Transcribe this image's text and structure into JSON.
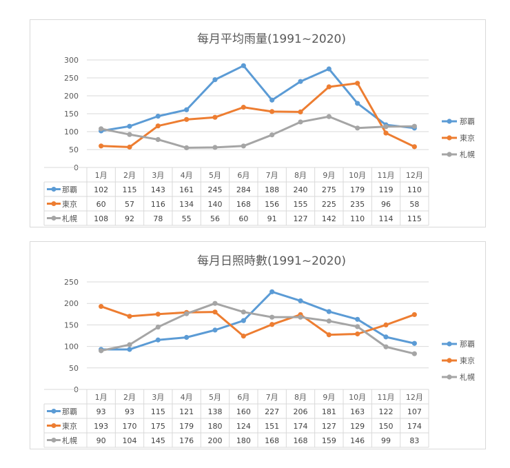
{
  "colors": {
    "naha": "#5b9bd5",
    "tokyo": "#ed7d31",
    "sapporo": "#a5a5a5"
  },
  "chart_data": [
    {
      "type": "line",
      "title": "每月平均雨量(1991~2020)",
      "categories": [
        "1月",
        "2月",
        "3月",
        "4月",
        "5月",
        "6月",
        "7月",
        "8月",
        "9月",
        "10月",
        "11月",
        "12月"
      ],
      "ylim": [
        0,
        300
      ],
      "yticks": [
        0,
        50,
        100,
        150,
        200,
        250,
        300
      ],
      "grid": true,
      "legend_position": "right",
      "series": [
        {
          "name": "那覇",
          "color": "#5b9bd5",
          "values": [
            102,
            115,
            143,
            161,
            245,
            284,
            188,
            240,
            275,
            179,
            119,
            110
          ]
        },
        {
          "name": "東京",
          "color": "#ed7d31",
          "values": [
            60,
            57,
            116,
            134,
            140,
            168,
            156,
            155,
            225,
            235,
            96,
            58
          ]
        },
        {
          "name": "札幌",
          "color": "#a5a5a5",
          "values": [
            108,
            92,
            78,
            55,
            56,
            60,
            91,
            127,
            142,
            110,
            114,
            115
          ]
        }
      ]
    },
    {
      "type": "line",
      "title": "每月日照時數(1991~2020)",
      "categories": [
        "1月",
        "2月",
        "3月",
        "4月",
        "5月",
        "6月",
        "7月",
        "8月",
        "9月",
        "10月",
        "11月",
        "12月"
      ],
      "ylim": [
        0,
        250
      ],
      "yticks": [
        0,
        50,
        100,
        150,
        200,
        250
      ],
      "grid": true,
      "legend_position": "right",
      "series": [
        {
          "name": "那覇",
          "color": "#5b9bd5",
          "values": [
            93,
            93,
            115,
            121,
            138,
            160,
            227,
            206,
            181,
            163,
            122,
            107
          ]
        },
        {
          "name": "東京",
          "color": "#ed7d31",
          "values": [
            193,
            170,
            175,
            179,
            180,
            124,
            151,
            174,
            127,
            129,
            150,
            174
          ]
        },
        {
          "name": "札幌",
          "color": "#a5a5a5",
          "values": [
            90,
            104,
            145,
            176,
            200,
            180,
            168,
            168,
            159,
            146,
            99,
            83
          ]
        }
      ]
    }
  ]
}
